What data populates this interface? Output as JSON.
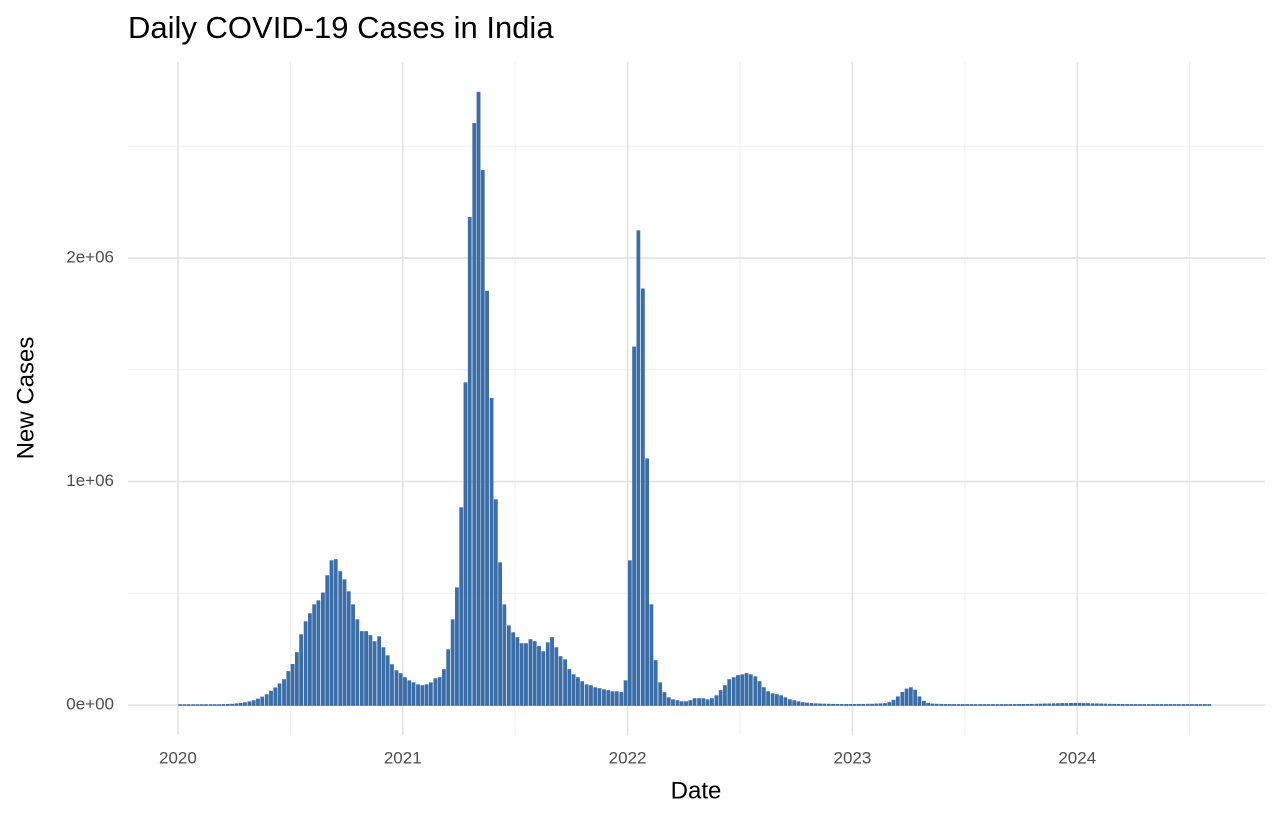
{
  "chart_data": {
    "type": "bar",
    "title": "Daily COVID-19 Cases in India",
    "x_label": "Date",
    "y_label": "New Cases",
    "color": "#3b6ea8",
    "grid": true,
    "xlim": [
      2019.778,
      2024.835
    ],
    "xticks": [
      2020,
      2021,
      2022,
      2023,
      2024
    ],
    "ylim": [
      -134000,
      2877000
    ],
    "yticks": [
      {
        "value": 0,
        "label": "0e+00"
      },
      {
        "value": 1000000,
        "label": "1e+06"
      },
      {
        "value": 2000000,
        "label": "2e+06"
      }
    ],
    "x": [
      2020.01,
      2020.029,
      2020.048,
      2020.068,
      2020.087,
      2020.106,
      2020.125,
      2020.145,
      2020.164,
      2020.183,
      2020.202,
      2020.222,
      2020.241,
      2020.26,
      2020.279,
      2020.298,
      2020.318,
      2020.337,
      2020.356,
      2020.375,
      2020.395,
      2020.414,
      2020.433,
      2020.452,
      2020.472,
      2020.491,
      2020.51,
      2020.529,
      2020.548,
      2020.568,
      2020.587,
      2020.606,
      2020.625,
      2020.645,
      2020.664,
      2020.683,
      2020.702,
      2020.722,
      2020.741,
      2020.76,
      2020.779,
      2020.798,
      2020.818,
      2020.837,
      2020.856,
      2020.875,
      2020.895,
      2020.914,
      2020.933,
      2020.952,
      2020.972,
      2020.991,
      2021.01,
      2021.029,
      2021.048,
      2021.068,
      2021.087,
      2021.106,
      2021.125,
      2021.145,
      2021.164,
      2021.183,
      2021.202,
      2021.222,
      2021.241,
      2021.26,
      2021.279,
      2021.298,
      2021.318,
      2021.337,
      2021.356,
      2021.375,
      2021.395,
      2021.414,
      2021.433,
      2021.452,
      2021.472,
      2021.491,
      2021.51,
      2021.529,
      2021.548,
      2021.568,
      2021.587,
      2021.606,
      2021.625,
      2021.645,
      2021.664,
      2021.683,
      2021.702,
      2021.722,
      2021.741,
      2021.76,
      2021.779,
      2021.798,
      2021.818,
      2021.837,
      2021.856,
      2021.875,
      2021.895,
      2021.914,
      2021.933,
      2021.952,
      2021.972,
      2021.991,
      2022.01,
      2022.029,
      2022.048,
      2022.068,
      2022.087,
      2022.106,
      2022.125,
      2022.145,
      2022.164,
      2022.183,
      2022.202,
      2022.222,
      2022.241,
      2022.26,
      2022.279,
      2022.298,
      2022.318,
      2022.337,
      2022.356,
      2022.375,
      2022.395,
      2022.414,
      2022.433,
      2022.452,
      2022.472,
      2022.491,
      2022.51,
      2022.529,
      2022.548,
      2022.568,
      2022.587,
      2022.606,
      2022.625,
      2022.645,
      2022.664,
      2022.683,
      2022.702,
      2022.722,
      2022.741,
      2022.76,
      2022.779,
      2022.798,
      2022.818,
      2022.837,
      2022.856,
      2022.875,
      2022.895,
      2022.914,
      2022.933,
      2022.952,
      2022.972,
      2022.991,
      2023.01,
      2023.029,
      2023.048,
      2023.068,
      2023.087,
      2023.106,
      2023.125,
      2023.145,
      2023.164,
      2023.183,
      2023.202,
      2023.222,
      2023.241,
      2023.26,
      2023.279,
      2023.298,
      2023.318,
      2023.337,
      2023.356,
      2023.375,
      2023.395,
      2023.414,
      2023.433,
      2023.452,
      2023.472,
      2023.491,
      2023.51,
      2023.529,
      2023.548,
      2023.568,
      2023.587,
      2023.606,
      2023.625,
      2023.645,
      2023.664,
      2023.683,
      2023.702,
      2023.722,
      2023.741,
      2023.76,
      2023.779,
      2023.798,
      2023.818,
      2023.837,
      2023.856,
      2023.875,
      2023.895,
      2023.914,
      2023.933,
      2023.952,
      2023.972,
      2023.991,
      2024.01,
      2024.029,
      2024.048,
      2024.068,
      2024.087,
      2024.106,
      2024.125,
      2024.145,
      2024.164,
      2024.183,
      2024.202,
      2024.222,
      2024.241,
      2024.26,
      2024.279,
      2024.298,
      2024.318,
      2024.337,
      2024.356,
      2024.375,
      2024.395,
      2024.414,
      2024.433,
      2024.452,
      2024.472,
      2024.491,
      2024.51,
      2024.529,
      2024.548,
      2024.568,
      2024.587
    ],
    "values": [
      0,
      0,
      0,
      0,
      0,
      0,
      0,
      0,
      0,
      0,
      500,
      1000,
      2000,
      4000,
      6000,
      9000,
      13000,
      18000,
      25000,
      34000,
      45000,
      60000,
      75000,
      93000,
      112000,
      148000,
      180000,
      233000,
      313000,
      371000,
      407000,
      447000,
      465000,
      500000,
      577000,
      644000,
      649000,
      595000,
      559000,
      505000,
      447000,
      380000,
      327000,
      327000,
      309000,
      282000,
      304000,
      255000,
      219000,
      179000,
      152000,
      139000,
      121000,
      107000,
      98000,
      89000,
      85000,
      89000,
      98000,
      116000,
      121000,
      157000,
      246000,
      380000,
      523000,
      881000,
      1440000,
      2180000,
      2600000,
      2740000,
      2390000,
      1850000,
      1370000,
      917000,
      635000,
      447000,
      353000,
      322000,
      300000,
      273000,
      273000,
      291000,
      282000,
      260000,
      237000,
      277000,
      300000,
      255000,
      215000,
      201000,
      157000,
      134000,
      121000,
      103000,
      89000,
      85000,
      76000,
      72000,
      67000,
      63000,
      58000,
      58000,
      54000,
      107000,
      644000,
      1600000,
      2120000,
      1860000,
      1100000,
      447000,
      197000,
      98000,
      54000,
      31000,
      22000,
      18000,
      13000,
      13000,
      18000,
      27000,
      27000,
      27000,
      22000,
      27000,
      40000,
      63000,
      85000,
      112000,
      121000,
      130000,
      134000,
      139000,
      134000,
      125000,
      103000,
      76000,
      58000,
      49000,
      45000,
      40000,
      31000,
      22000,
      18000,
      13000,
      9000,
      7000,
      5000,
      4000,
      3000,
      2500,
      2000,
      1500,
      1200,
      1000,
      1000,
      1000,
      1000,
      1500,
      1500,
      2000,
      2000,
      3000,
      4000,
      5000,
      10000,
      20000,
      35000,
      55000,
      70000,
      76000,
      65000,
      35000,
      15000,
      6000,
      3000,
      2000,
      1500,
      1000,
      800,
      700,
      600,
      600,
      500,
      500,
      500,
      500,
      500,
      500,
      500,
      500,
      500,
      500,
      600,
      700,
      800,
      1000,
      1200,
      1500,
      2000,
      2500,
      3000,
      3500,
      4000,
      4500,
      5000,
      5000,
      5500,
      6000,
      6000,
      5000,
      5000,
      4000,
      3500,
      3000,
      2500,
      2000,
      1500,
      1200,
      1000,
      800,
      700,
      600,
      500,
      500,
      500,
      500,
      500,
      500,
      500,
      500,
      500,
      500,
      500,
      500,
      500,
      500,
      500,
      500,
      500
    ]
  }
}
